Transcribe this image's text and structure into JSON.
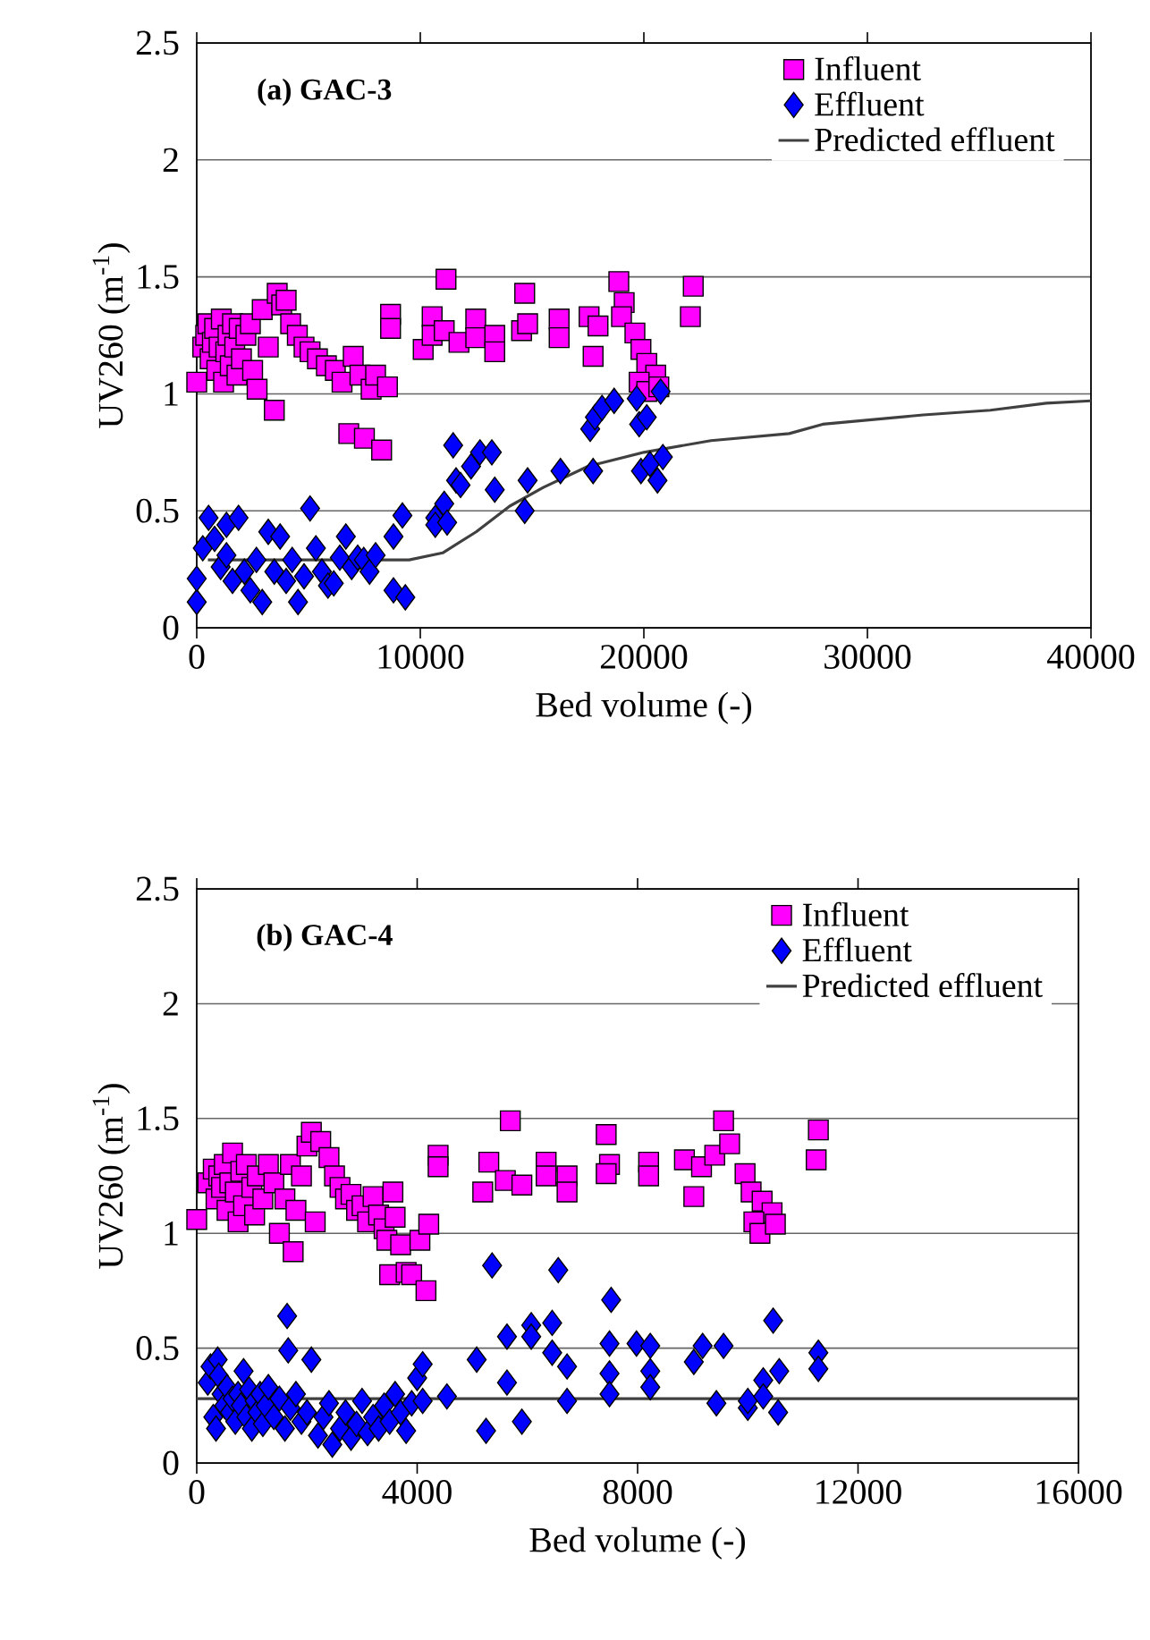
{
  "chart_data": [
    {
      "type": "scatter",
      "title": "(a) GAC-3",
      "xlabel": "Bed volume (-)",
      "ylabel": "UV260 (m$^{-1}$)",
      "xlim": [
        0,
        40000
      ],
      "ylim": [
        0,
        2.5
      ],
      "xticks": [
        0,
        10000,
        20000,
        30000,
        40000
      ],
      "yticks": [
        0,
        0.5,
        1,
        1.5,
        2,
        2.5
      ],
      "grid": "y",
      "legend": "top right",
      "series": [
        {
          "name": "Influent",
          "marker": "square",
          "color": "#ff00ff",
          "x": [
            0,
            270,
            400,
            500,
            600,
            700,
            800,
            900,
            1000,
            1100,
            1200,
            1300,
            1400,
            1500,
            1600,
            1700,
            1800,
            1900,
            2000,
            2200,
            2400,
            2500,
            2700,
            2930,
            3200,
            3470,
            3600,
            3800,
            4000,
            4200,
            4500,
            4800,
            5070,
            5400,
            5800,
            6200,
            6500,
            6800,
            7000,
            7300,
            7500,
            7800,
            8000,
            8270,
            8530,
            8670,
            8670,
            10130,
            10530,
            10530,
            11150,
            11070,
            11730,
            12480,
            12480,
            13330,
            13330,
            14670,
            14530,
            14800,
            16210,
            16210,
            17550,
            17730,
            17950,
            18880,
            19120,
            19000,
            19600,
            19870,
            20130,
            20530,
            19790,
            20130,
            20670,
            22210,
            22080
          ],
          "values": [
            1.05,
            1.2,
            1.25,
            1.3,
            1.15,
            1.22,
            1.28,
            1.1,
            1.2,
            1.32,
            1.05,
            1.18,
            1.25,
            1.12,
            1.3,
            1.2,
            1.08,
            1.28,
            1.15,
            1.25,
            1.3,
            1.1,
            1.02,
            1.36,
            1.2,
            0.93,
            1.43,
            1.38,
            1.4,
            1.3,
            1.25,
            1.2,
            1.18,
            1.15,
            1.12,
            1.1,
            1.05,
            0.83,
            1.16,
            1.08,
            0.81,
            1.02,
            1.08,
            0.76,
            1.03,
            1.34,
            1.28,
            1.19,
            1.33,
            1.25,
            1.49,
            1.27,
            1.22,
            1.32,
            1.24,
            1.25,
            1.18,
            1.43,
            1.27,
            1.3,
            1.32,
            1.24,
            1.33,
            1.16,
            1.29,
            1.48,
            1.39,
            1.33,
            1.26,
            1.19,
            1.13,
            1.08,
            1.05,
            1.01,
            1.03,
            1.46,
            1.33
          ]
        },
        {
          "name": "Effluent",
          "marker": "diamond",
          "color": "#0000ff",
          "x": [
            0,
            0,
            270,
            530,
            800,
            1070,
            1330,
            1330,
            1600,
            1870,
            2130,
            2400,
            2670,
            2930,
            3200,
            3470,
            3730,
            4000,
            4270,
            4530,
            4800,
            5070,
            5330,
            5600,
            5870,
            6130,
            6400,
            6670,
            6930,
            7200,
            7470,
            7730,
            8000,
            8800,
            9200,
            8800,
            9330,
            10670,
            10670,
            11070,
            11200,
            11470,
            11600,
            11800,
            12270,
            12670,
            13200,
            13330,
            14670,
            14800,
            16270,
            17730,
            17600,
            17810,
            18130,
            18670,
            19680,
            19790,
            20130,
            20750,
            19870,
            20270,
            20850,
            20610
          ],
          "values": [
            0.11,
            0.21,
            0.34,
            0.47,
            0.38,
            0.26,
            0.44,
            0.31,
            0.2,
            0.47,
            0.24,
            0.16,
            0.29,
            0.11,
            0.41,
            0.24,
            0.39,
            0.2,
            0.29,
            0.11,
            0.22,
            0.51,
            0.34,
            0.24,
            0.18,
            0.19,
            0.3,
            0.39,
            0.26,
            0.3,
            0.29,
            0.24,
            0.31,
            0.39,
            0.48,
            0.16,
            0.13,
            0.47,
            0.44,
            0.53,
            0.45,
            0.78,
            0.63,
            0.61,
            0.69,
            0.75,
            0.75,
            0.59,
            0.5,
            0.63,
            0.67,
            0.67,
            0.85,
            0.9,
            0.94,
            0.97,
            0.98,
            0.87,
            0.9,
            1.01,
            0.67,
            0.7,
            0.73,
            0.63
          ]
        },
        {
          "name": "Predicted effluent",
          "type": "line",
          "marker": "none",
          "color": "#404040",
          "x": [
            500,
            9500,
            11000,
            12500,
            14000,
            15500,
            17500,
            20000,
            23000,
            26500,
            28000,
            32500,
            35500,
            38000,
            40000
          ],
          "values": [
            0.29,
            0.29,
            0.32,
            0.41,
            0.52,
            0.6,
            0.69,
            0.75,
            0.8,
            0.83,
            0.87,
            0.91,
            0.93,
            0.96,
            0.97
          ]
        }
      ]
    },
    {
      "type": "scatter",
      "title": "(b) GAC-4",
      "xlabel": "Bed volume (-)",
      "ylabel": "UV260 (m$^{-1}$)",
      "xlim": [
        0,
        16000
      ],
      "ylim": [
        0,
        2.5
      ],
      "xticks": [
        0,
        4000,
        8000,
        12000,
        16000
      ],
      "yticks": [
        0,
        0.5,
        1,
        1.5,
        2,
        2.5
      ],
      "grid": "y",
      "legend": "top right",
      "series": [
        {
          "name": "Influent",
          "marker": "square",
          "color": "#ff00ff",
          "x": [
            0,
            200,
            300,
            350,
            400,
            450,
            500,
            550,
            600,
            650,
            700,
            750,
            800,
            850,
            900,
            1000,
            1050,
            1100,
            1200,
            1300,
            1400,
            1500,
            1600,
            1700,
            1750,
            1800,
            1900,
            2000,
            2080,
            2150,
            2250,
            2400,
            2500,
            2600,
            2700,
            2800,
            2900,
            3000,
            3100,
            3200,
            3300,
            3400,
            3450,
            3500,
            3560,
            3600,
            3700,
            3800,
            3900,
            4050,
            4160,
            4210,
            4380,
            4380,
            5190,
            5300,
            5690,
            5600,
            5900,
            6340,
            6340,
            6720,
            6720,
            7430,
            7490,
            7430,
            8200,
            8200,
            8850,
            9020,
            9160,
            9400,
            9560,
            9670,
            9950,
            10060,
            10260,
            10440,
            10110,
            10220,
            10500,
            11280,
            11240
          ],
          "values": [
            1.06,
            1.22,
            1.28,
            1.15,
            1.25,
            1.2,
            1.3,
            1.1,
            1.22,
            1.35,
            1.18,
            1.05,
            1.27,
            1.12,
            1.3,
            1.2,
            1.08,
            1.25,
            1.15,
            1.3,
            1.22,
            1.0,
            1.15,
            1.3,
            0.92,
            1.1,
            1.25,
            1.38,
            1.44,
            1.05,
            1.4,
            1.33,
            1.25,
            1.2,
            1.15,
            1.17,
            1.1,
            1.12,
            1.05,
            1.16,
            1.08,
            1.02,
            0.97,
            0.82,
            1.18,
            1.07,
            0.95,
            0.83,
            0.82,
            0.97,
            0.75,
            1.04,
            1.34,
            1.29,
            1.18,
            1.31,
            1.49,
            1.23,
            1.21,
            1.31,
            1.25,
            1.25,
            1.18,
            1.43,
            1.3,
            1.26,
            1.31,
            1.25,
            1.32,
            1.16,
            1.29,
            1.34,
            1.49,
            1.39,
            1.26,
            1.18,
            1.14,
            1.09,
            1.05,
            1.0,
            1.04,
            1.45,
            1.32
          ]
        },
        {
          "name": "Effluent",
          "marker": "diamond",
          "color": "#0000ff",
          "x": [
            200,
            250,
            300,
            350,
            380,
            400,
            450,
            500,
            550,
            600,
            650,
            700,
            750,
            800,
            850,
            900,
            950,
            1000,
            1050,
            1100,
            1150,
            1200,
            1250,
            1300,
            1400,
            1500,
            1600,
            1640,
            1660,
            1700,
            1800,
            1900,
            2000,
            2080,
            2200,
            2300,
            2400,
            2460,
            2600,
            2700,
            2800,
            2900,
            3000,
            3100,
            3200,
            3300,
            3400,
            3500,
            3600,
            3700,
            3800,
            3900,
            4000,
            4100,
            4100,
            4540,
            5080,
            5250,
            5360,
            5630,
            5630,
            5900,
            6070,
            6070,
            6450,
            6450,
            6560,
            6720,
            6720,
            7520,
            7490,
            7490,
            7490,
            7980,
            8230,
            8230,
            8230,
            9020,
            9180,
            9560,
            9430,
            10000,
            10000,
            10280,
            10280,
            10460,
            10570,
            10550,
            11280,
            11280
          ],
          "values": [
            0.35,
            0.42,
            0.2,
            0.15,
            0.45,
            0.38,
            0.3,
            0.25,
            0.33,
            0.22,
            0.28,
            0.18,
            0.3,
            0.25,
            0.4,
            0.2,
            0.32,
            0.15,
            0.27,
            0.22,
            0.3,
            0.17,
            0.25,
            0.33,
            0.2,
            0.28,
            0.15,
            0.64,
            0.49,
            0.24,
            0.3,
            0.18,
            0.22,
            0.45,
            0.12,
            0.2,
            0.26,
            0.08,
            0.15,
            0.22,
            0.11,
            0.17,
            0.27,
            0.13,
            0.2,
            0.15,
            0.25,
            0.18,
            0.3,
            0.22,
            0.14,
            0.26,
            0.37,
            0.43,
            0.27,
            0.29,
            0.45,
            0.14,
            0.86,
            0.55,
            0.35,
            0.18,
            0.6,
            0.55,
            0.61,
            0.48,
            0.84,
            0.42,
            0.27,
            0.71,
            0.52,
            0.39,
            0.3,
            0.52,
            0.51,
            0.4,
            0.33,
            0.44,
            0.51,
            0.51,
            0.26,
            0.24,
            0.27,
            0.36,
            0.29,
            0.62,
            0.4,
            0.22,
            0.48,
            0.41
          ]
        },
        {
          "name": "Predicted effluent",
          "type": "line",
          "marker": "none",
          "color": "#404040",
          "x": [
            0,
            8000,
            16000
          ],
          "values": [
            0.28,
            0.28,
            0.28
          ]
        }
      ]
    }
  ]
}
